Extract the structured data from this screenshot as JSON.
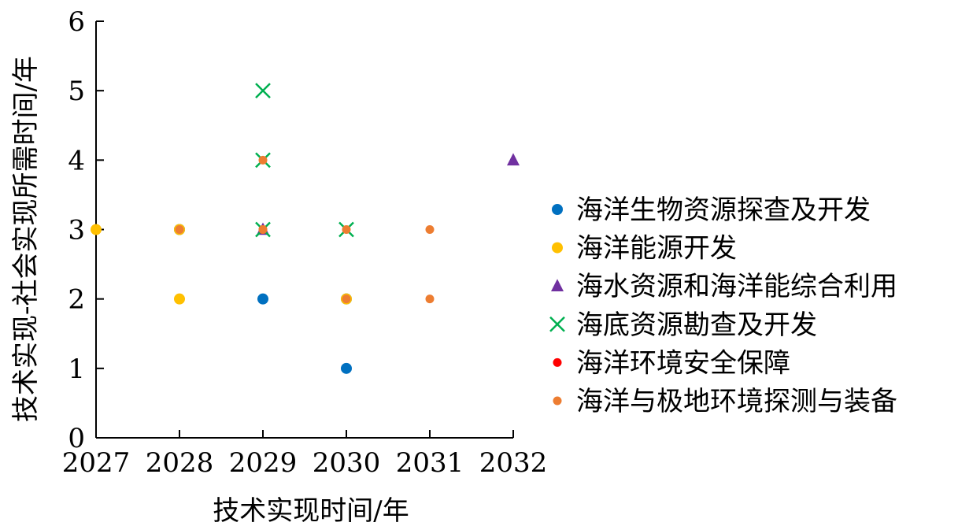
{
  "chart_data": {
    "type": "scatter",
    "xlabel": "技术实现时间/年",
    "ylabel": "技术实现-社会实现所需时间/年",
    "xlim": [
      2027,
      2032
    ],
    "ylim": [
      0,
      6
    ],
    "xticks": [
      "2027",
      "2028",
      "2029",
      "2030",
      "2031",
      "2032"
    ],
    "yticks": [
      "0",
      "1",
      "2",
      "3",
      "4",
      "5",
      "6"
    ],
    "grid": false,
    "legend_position": "right",
    "series": [
      {
        "name": "海洋生物资源探查及开发",
        "marker": "circle",
        "color": "#0070C0",
        "points": [
          [
            2029,
            2
          ],
          [
            2030,
            1
          ],
          [
            2030,
            2
          ],
          [
            2028,
            3
          ]
        ]
      },
      {
        "name": "海洋能源开发",
        "marker": "circle",
        "color": "#FFC000",
        "points": [
          [
            2027,
            3
          ],
          [
            2028,
            2
          ],
          [
            2028,
            3
          ],
          [
            2030,
            2
          ]
        ]
      },
      {
        "name": "海水资源和海洋能综合利用",
        "marker": "triangle",
        "color": "#7030A0",
        "points": [
          [
            2029,
            3
          ],
          [
            2032,
            4
          ]
        ]
      },
      {
        "name": "海底资源勘查及开发",
        "marker": "x",
        "color": "#00B050",
        "points": [
          [
            2029,
            3
          ],
          [
            2029,
            4
          ],
          [
            2029,
            5
          ],
          [
            2030,
            3
          ]
        ]
      },
      {
        "name": "海洋环境安全保障",
        "marker": "circle-small",
        "color": "#FF0000",
        "points": [
          [
            2029,
            3
          ]
        ]
      },
      {
        "name": "海洋与极地环境探测与装备",
        "marker": "circle-small",
        "color": "#ED7D31",
        "points": [
          [
            2028,
            3
          ],
          [
            2029,
            3
          ],
          [
            2029,
            4
          ],
          [
            2030,
            2
          ],
          [
            2030,
            3
          ],
          [
            2031,
            2
          ],
          [
            2031,
            3
          ]
        ]
      }
    ]
  }
}
